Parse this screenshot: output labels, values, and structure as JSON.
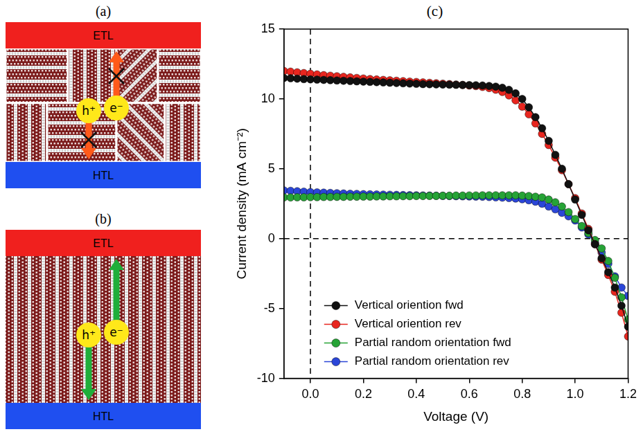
{
  "diagrams": [
    {
      "label": "(a)",
      "top_layer": "ETL",
      "bottom_layer": "HTL",
      "hole": "h⁺",
      "electron": "e⁻",
      "orientation": "random"
    },
    {
      "label": "(b)",
      "top_layer": "ETL",
      "bottom_layer": "HTL",
      "hole": "h⁺",
      "electron": "e⁻",
      "orientation": "vertical"
    }
  ],
  "chart_label": "(c)",
  "chart_data": {
    "type": "line",
    "x_label": "Voltage (V)",
    "y_label": "Current density (mA cm⁻²)",
    "x": [
      -0.1,
      -0.075,
      -0.05,
      -0.025,
      0,
      0.025,
      0.05,
      0.075,
      0.1,
      0.125,
      0.15,
      0.175,
      0.2,
      0.225,
      0.25,
      0.275,
      0.3,
      0.325,
      0.35,
      0.375,
      0.4,
      0.425,
      0.45,
      0.475,
      0.5,
      0.525,
      0.55,
      0.575,
      0.6,
      0.625,
      0.65,
      0.675,
      0.7,
      0.725,
      0.75,
      0.775,
      0.8,
      0.825,
      0.85,
      0.875,
      0.9,
      0.925,
      0.95,
      0.975,
      1.0,
      1.025,
      1.05,
      1.075,
      1.1,
      1.125,
      1.15,
      1.175,
      1.2
    ],
    "series": [
      {
        "name": "Vertical oriention fwd",
        "color": "#111111",
        "marker": "circle",
        "values": [
          11.5,
          11.48,
          11.45,
          11.42,
          11.4,
          11.38,
          11.36,
          11.34,
          11.32,
          11.3,
          11.28,
          11.26,
          11.24,
          11.22,
          11.2,
          11.18,
          11.16,
          11.14,
          11.12,
          11.1,
          11.08,
          11.06,
          11.05,
          11.04,
          11.03,
          11.02,
          11.01,
          11.0,
          10.99,
          10.98,
          10.96,
          10.93,
          10.88,
          10.8,
          10.65,
          10.4,
          10.0,
          9.4,
          8.7,
          7.9,
          7.0,
          6.0,
          5.0,
          3.9,
          2.8,
          1.7,
          0.6,
          -0.4,
          -1.4,
          -2.4,
          -3.5,
          -4.8,
          -6.3
        ]
      },
      {
        "name": "Vertical oriention rev",
        "color": "#e8261f",
        "marker": "circle",
        "values": [
          12.0,
          11.95,
          11.9,
          11.85,
          11.8,
          11.75,
          11.7,
          11.66,
          11.62,
          11.58,
          11.54,
          11.5,
          11.46,
          11.42,
          11.39,
          11.36,
          11.33,
          11.3,
          11.27,
          11.24,
          11.21,
          11.18,
          11.15,
          11.12,
          11.09,
          11.06,
          11.03,
          11.0,
          10.96,
          10.92,
          10.86,
          10.78,
          10.66,
          10.5,
          10.25,
          9.9,
          9.45,
          8.9,
          8.25,
          7.5,
          6.7,
          5.8,
          4.9,
          3.9,
          2.9,
          1.8,
          0.7,
          -0.4,
          -1.5,
          -2.6,
          -3.8,
          -5.3,
          -7.0
        ]
      },
      {
        "name": "Partial random orientation fwd",
        "color": "#26a336",
        "marker": "circle",
        "values": [
          2.95,
          2.95,
          2.96,
          2.96,
          2.97,
          2.97,
          2.98,
          2.98,
          2.99,
          2.99,
          3.0,
          3.0,
          3.01,
          3.01,
          3.02,
          3.02,
          3.03,
          3.03,
          3.04,
          3.04,
          3.05,
          3.05,
          3.06,
          3.06,
          3.07,
          3.07,
          3.08,
          3.08,
          3.09,
          3.09,
          3.1,
          3.1,
          3.1,
          3.1,
          3.1,
          3.1,
          3.08,
          3.05,
          3.0,
          2.95,
          2.8,
          2.6,
          2.3,
          1.9,
          1.4,
          0.9,
          0.4,
          -0.1,
          -0.7,
          -1.6,
          -2.8,
          -4.2,
          -5.8
        ]
      },
      {
        "name": "Partial random orientation rev",
        "color": "#2b46d8",
        "marker": "circle",
        "values": [
          3.45,
          3.42,
          3.39,
          3.36,
          3.33,
          3.31,
          3.29,
          3.27,
          3.25,
          3.23,
          3.21,
          3.2,
          3.18,
          3.17,
          3.16,
          3.15,
          3.14,
          3.13,
          3.12,
          3.11,
          3.1,
          3.09,
          3.08,
          3.07,
          3.06,
          3.05,
          3.04,
          3.03,
          3.02,
          3.01,
          3.0,
          2.98,
          2.96,
          2.94,
          2.91,
          2.87,
          2.82,
          2.75,
          2.65,
          2.5,
          2.3,
          2.1,
          1.85,
          1.6,
          1.3,
          0.8,
          0.3,
          -0.3,
          -1.0,
          -1.8,
          -2.7,
          -3.5,
          -4.1
        ]
      }
    ],
    "xlim": [
      -0.1,
      1.2
    ],
    "xticks": [
      {
        "value": 0,
        "label": "0.0"
      },
      0.2,
      0.4,
      0.6,
      0.8,
      {
        "value": 1,
        "label": "1.0"
      },
      1.2
    ],
    "ylim": [
      -10,
      15
    ],
    "yticks": [
      -10,
      -5,
      0,
      5,
      10,
      15
    ],
    "reference_lines": {
      "x": 0,
      "y": 0
    },
    "grid": false,
    "legend": "lower left"
  }
}
